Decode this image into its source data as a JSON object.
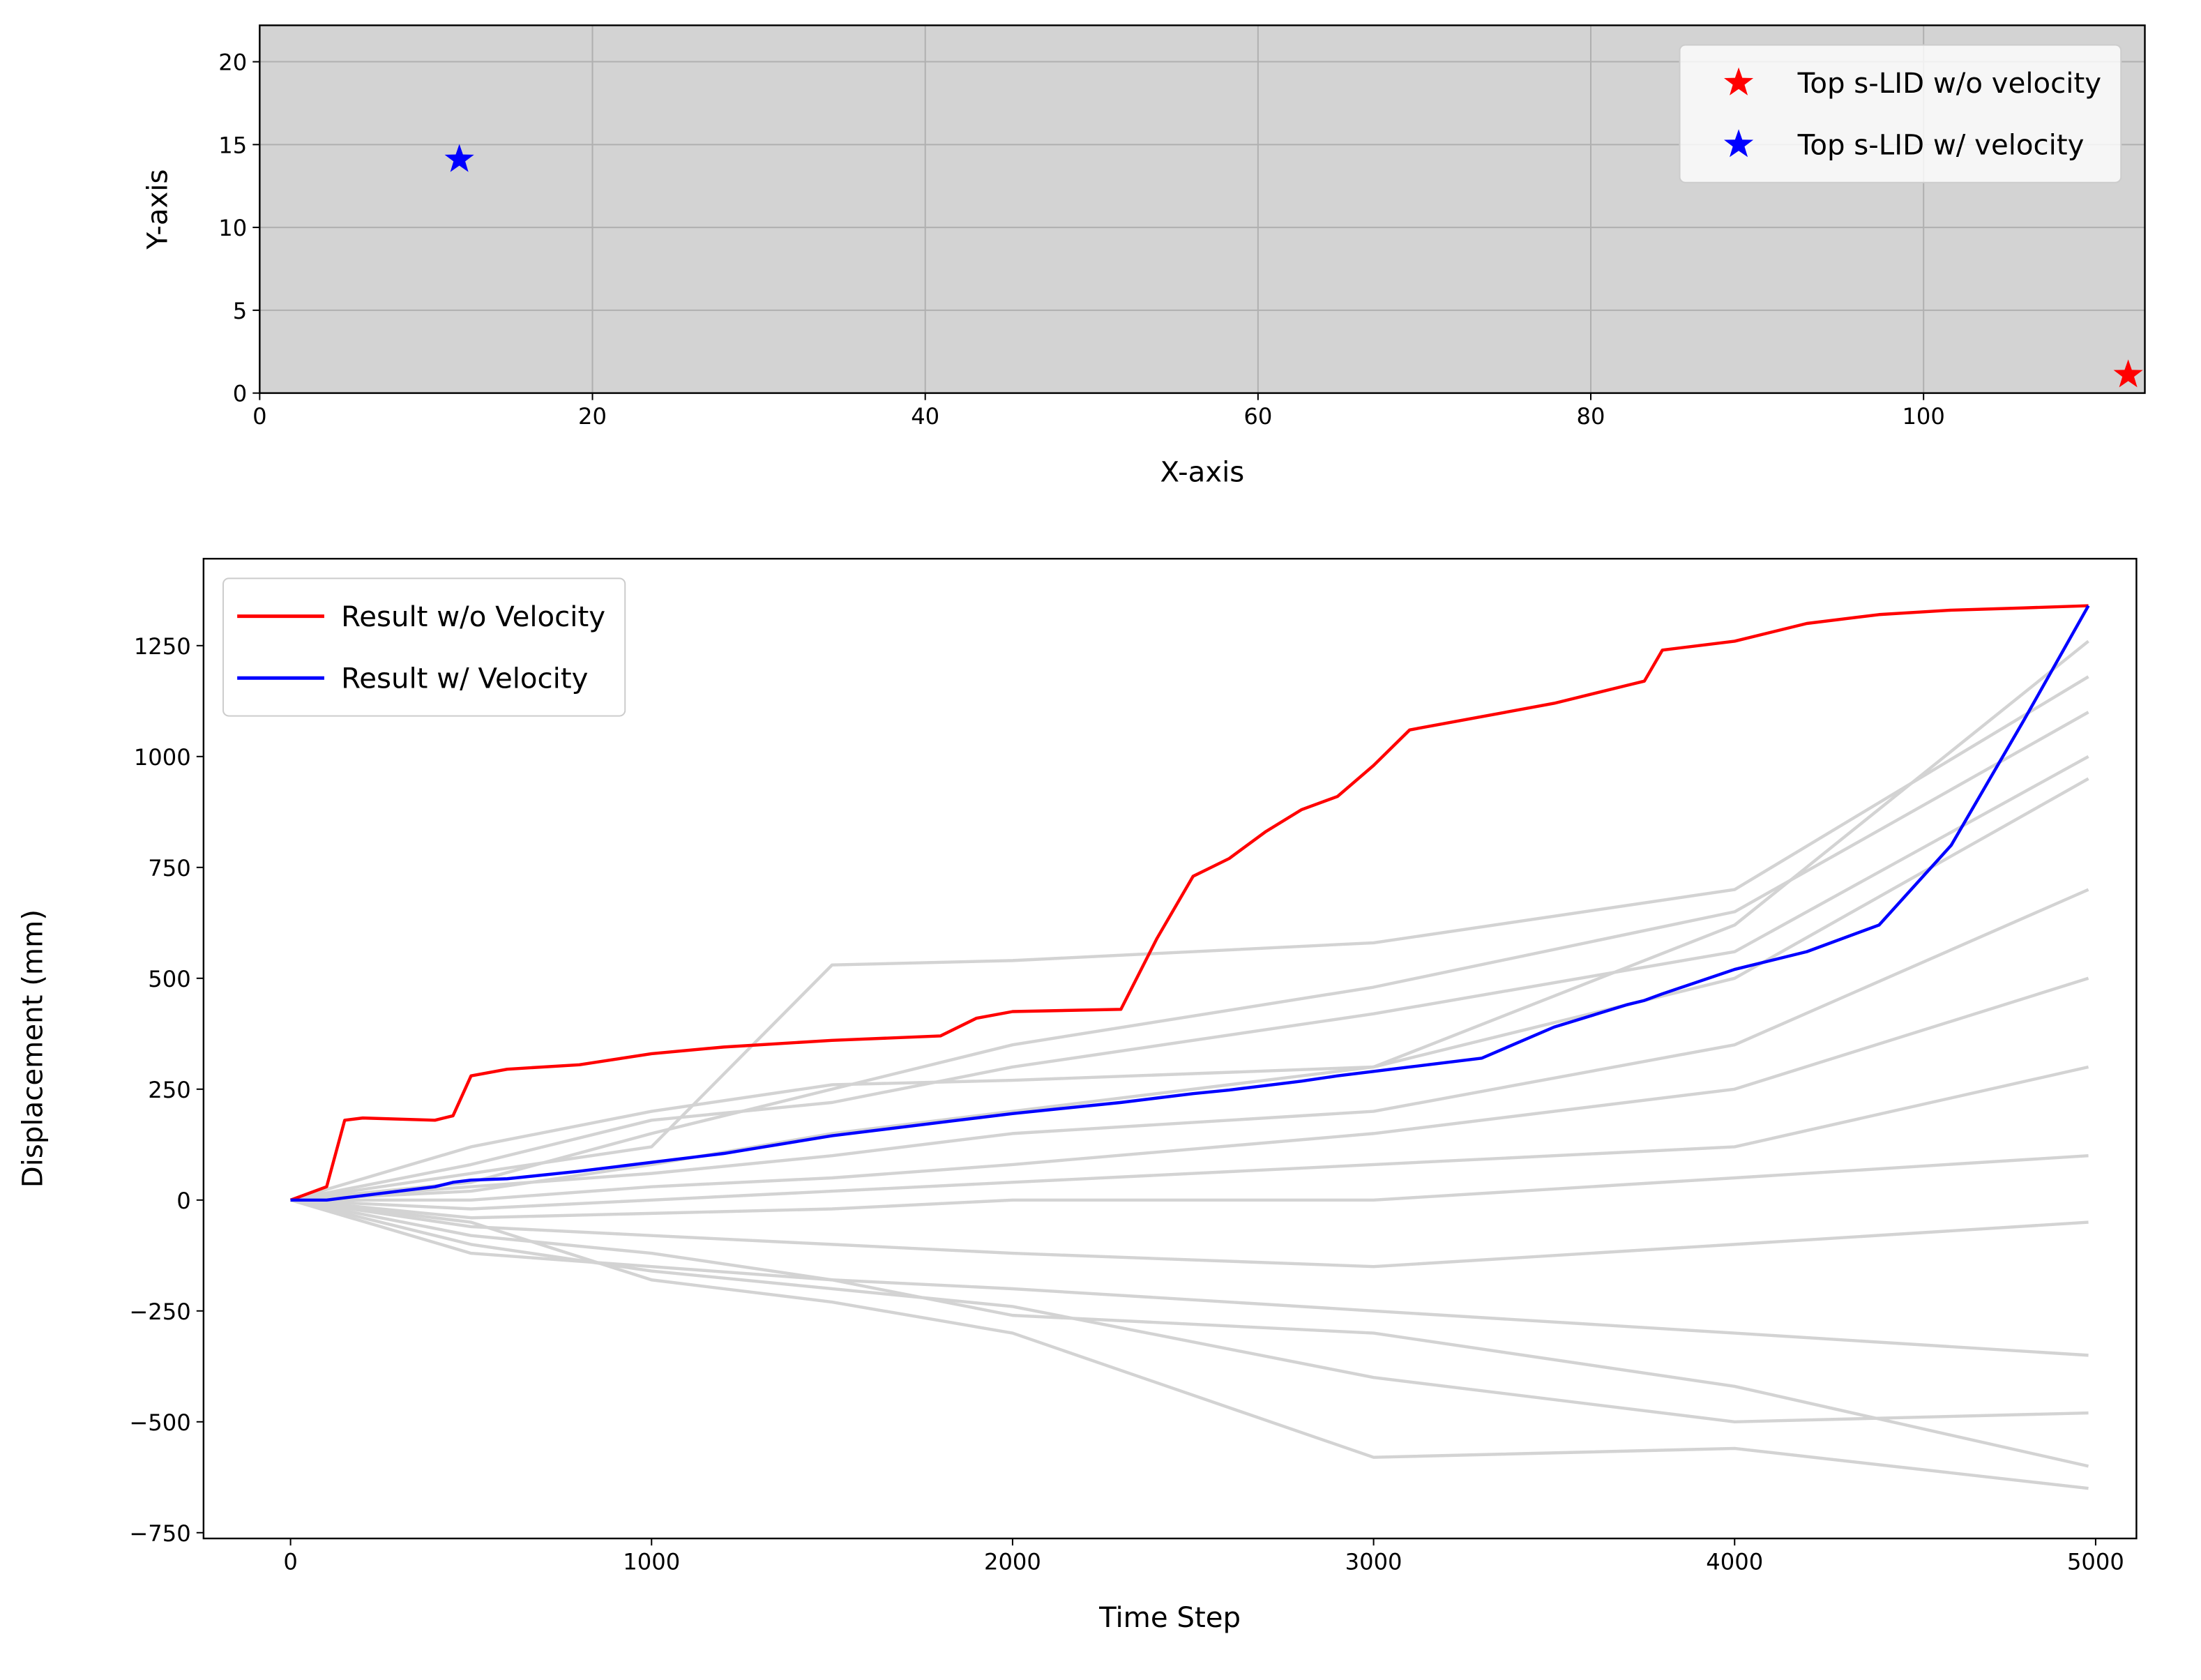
{
  "chart_data": [
    {
      "type": "scatter",
      "xlabel": "X-axis",
      "ylabel": "Y-axis",
      "xlim": [
        0,
        113.3
      ],
      "ylim": [
        0,
        22.2
      ],
      "xticks": [
        0,
        20,
        40,
        60,
        80,
        100
      ],
      "yticks": [
        0,
        5,
        10,
        15,
        20
      ],
      "grid": true,
      "background": "#d3d3d3",
      "marker": "star",
      "legend": "upper right",
      "series": [
        {
          "name": "Top s-LID w/o velocity",
          "color": "#ff0000",
          "x": [
            112.3
          ],
          "values": [
            1.1
          ]
        },
        {
          "name": "Top s-LID w/ velocity",
          "color": "#0000ff",
          "x": [
            12.0
          ],
          "values": [
            14.1
          ]
        }
      ]
    },
    {
      "type": "line",
      "xlabel": "Time Step",
      "ylabel": "Displacement (mm)",
      "xlim": [
        -241,
        5113
      ],
      "ylim": [
        -763,
        1446
      ],
      "xticks": [
        0,
        1000,
        2000,
        3000,
        4000,
        5000
      ],
      "yticks": [
        {
          "value": -750,
          "label": "−750"
        },
        {
          "value": -500,
          "label": "−500"
        },
        {
          "value": -250,
          "label": "−250"
        },
        0,
        250,
        500,
        750,
        1000,
        1250
      ],
      "grid": false,
      "legend": "upper left",
      "series": [
        {
          "color": "#d3d3d3",
          "x": [
            0,
            500,
            1000,
            1500,
            2000,
            3000,
            4000,
            4980
          ],
          "values": [
            0,
            120,
            200,
            260,
            270,
            300,
            620,
            1260
          ]
        },
        {
          "color": "#d3d3d3",
          "x": [
            0,
            500,
            1000,
            1500,
            2000,
            3000,
            4000,
            4980
          ],
          "values": [
            0,
            60,
            120,
            530,
            540,
            580,
            700,
            1180
          ]
        },
        {
          "color": "#d3d3d3",
          "x": [
            0,
            500,
            1000,
            1500,
            2000,
            3000,
            4000,
            4980
          ],
          "values": [
            0,
            40,
            150,
            250,
            350,
            480,
            650,
            1100
          ]
        },
        {
          "color": "#d3d3d3",
          "x": [
            0,
            500,
            1000,
            1500,
            2000,
            3000,
            4000,
            4980
          ],
          "values": [
            0,
            80,
            180,
            220,
            300,
            420,
            560,
            1000
          ]
        },
        {
          "color": "#d3d3d3",
          "x": [
            0,
            500,
            1000,
            1500,
            2000,
            3000,
            4000,
            4980
          ],
          "values": [
            0,
            20,
            80,
            150,
            200,
            300,
            500,
            950
          ]
        },
        {
          "color": "#d3d3d3",
          "x": [
            0,
            500,
            1000,
            1500,
            2000,
            3000,
            4000,
            4980
          ],
          "values": [
            0,
            30,
            60,
            100,
            150,
            200,
            350,
            700
          ]
        },
        {
          "color": "#d3d3d3",
          "x": [
            0,
            500,
            1000,
            1500,
            2000,
            3000,
            4000,
            4980
          ],
          "values": [
            0,
            0,
            30,
            50,
            80,
            150,
            250,
            500
          ]
        },
        {
          "color": "#d3d3d3",
          "x": [
            0,
            500,
            1000,
            1500,
            2000,
            3000,
            4000,
            4980
          ],
          "values": [
            0,
            -20,
            0,
            20,
            40,
            80,
            120,
            300
          ]
        },
        {
          "color": "#d3d3d3",
          "x": [
            0,
            500,
            1000,
            1500,
            2000,
            3000,
            4000,
            4980
          ],
          "values": [
            0,
            -40,
            -30,
            -20,
            0,
            0,
            50,
            100
          ]
        },
        {
          "color": "#d3d3d3",
          "x": [
            0,
            500,
            1000,
            1500,
            2000,
            3000,
            4000,
            4980
          ],
          "values": [
            0,
            -60,
            -80,
            -100,
            -120,
            -150,
            -100,
            -50
          ]
        },
        {
          "color": "#d3d3d3",
          "x": [
            0,
            500,
            1000,
            1500,
            2000,
            3000,
            4000,
            4980
          ],
          "values": [
            0,
            -80,
            -120,
            -180,
            -200,
            -250,
            -300,
            -350
          ]
        },
        {
          "color": "#d3d3d3",
          "x": [
            0,
            500,
            1000,
            1500,
            2000,
            3000,
            4000,
            4980
          ],
          "values": [
            0,
            -100,
            -160,
            -200,
            -240,
            -400,
            -500,
            -480
          ]
        },
        {
          "color": "#d3d3d3",
          "x": [
            0,
            500,
            1000,
            1500,
            2000,
            3000,
            4000,
            4980
          ],
          "values": [
            0,
            -120,
            -150,
            -180,
            -260,
            -300,
            -420,
            -600
          ]
        },
        {
          "color": "#d3d3d3",
          "x": [
            0,
            500,
            1000,
            1500,
            2000,
            3000,
            4000,
            4980
          ],
          "values": [
            0,
            -50,
            -180,
            -230,
            -300,
            -580,
            -560,
            -650
          ]
        },
        {
          "name": "Result w/o Velocity",
          "color": "#ff0000",
          "x": [
            0,
            100,
            150,
            200,
            400,
            450,
            500,
            600,
            800,
            1000,
            1200,
            1500,
            1800,
            1900,
            2000,
            2300,
            2400,
            2500,
            2600,
            2700,
            2800,
            2900,
            3000,
            3100,
            3300,
            3500,
            3700,
            3750,
            3800,
            4000,
            4200,
            4400,
            4600,
            4800,
            4980
          ],
          "values": [
            0,
            30,
            180,
            185,
            180,
            190,
            280,
            295,
            305,
            330,
            345,
            360,
            370,
            410,
            425,
            430,
            590,
            730,
            770,
            830,
            880,
            910,
            980,
            1060,
            1090,
            1120,
            1160,
            1170,
            1240,
            1260,
            1300,
            1320,
            1330,
            1335,
            1340
          ]
        },
        {
          "name": "Result w/ Velocity",
          "color": "#0000ff",
          "x": [
            0,
            100,
            150,
            200,
            400,
            450,
            500,
            600,
            800,
            1000,
            1200,
            1500,
            1800,
            1900,
            2000,
            2300,
            2400,
            2500,
            2600,
            2700,
            2800,
            2900,
            3000,
            3100,
            3300,
            3500,
            3700,
            3750,
            3800,
            4000,
            4200,
            4400,
            4600,
            4800,
            4980
          ],
          "values": [
            0,
            0,
            5,
            10,
            30,
            40,
            45,
            48,
            65,
            85,
            105,
            145,
            175,
            185,
            195,
            220,
            230,
            240,
            248,
            258,
            268,
            280,
            290,
            300,
            320,
            390,
            440,
            450,
            465,
            520,
            560,
            620,
            800,
            1080,
            1340
          ]
        }
      ]
    }
  ]
}
